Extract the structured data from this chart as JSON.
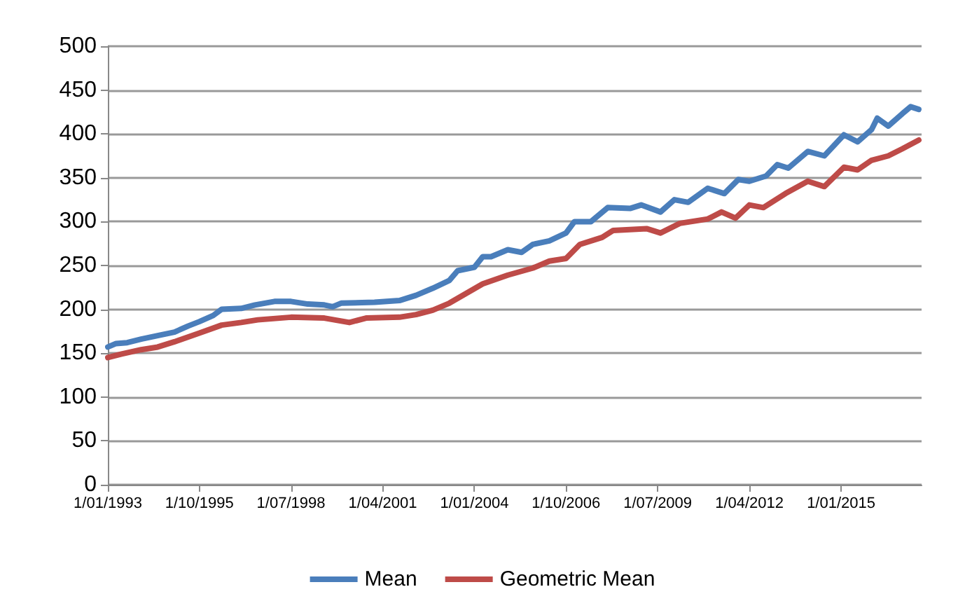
{
  "chart_data": {
    "type": "line",
    "grid": "y",
    "legend": "bottom",
    "marker": "none",
    "line_style": "solid",
    "xlim": [
      "1993-01",
      "2017-06"
    ],
    "xticks": [
      {
        "value": "1993-01",
        "label": "1/01/1993"
      },
      {
        "value": "1995-10",
        "label": "1/10/1995"
      },
      {
        "value": "1998-07",
        "label": "1/07/1998"
      },
      {
        "value": "2001-04",
        "label": "1/04/2001"
      },
      {
        "value": "2004-01",
        "label": "1/01/2004"
      },
      {
        "value": "2006-10",
        "label": "1/10/2006"
      },
      {
        "value": "2009-07",
        "label": "1/07/2009"
      },
      {
        "value": "2012-04",
        "label": "1/04/2012"
      },
      {
        "value": "2015-01",
        "label": "1/01/2015"
      }
    ],
    "ylim": [
      0,
      500
    ],
    "yticks": [
      0,
      50,
      100,
      150,
      200,
      250,
      300,
      350,
      400,
      450,
      500
    ],
    "series": [
      {
        "name": "Mean",
        "color": "#4a7ebb",
        "x": [
          "1993-01",
          "1993-04",
          "1993-08",
          "1994-01",
          "1994-07",
          "1995-01",
          "1995-06",
          "1995-10",
          "1996-03",
          "1996-06",
          "1997-01",
          "1997-06",
          "1998-01",
          "1998-07",
          "1999-01",
          "1999-07",
          "1999-10",
          "2000-01",
          "2001-01",
          "2001-10",
          "2002-04",
          "2002-10",
          "2003-04",
          "2003-07",
          "2004-01",
          "2004-04",
          "2004-07",
          "2005-01",
          "2005-06",
          "2005-10",
          "2006-04",
          "2006-10",
          "2007-01",
          "2007-07",
          "2008-01",
          "2008-09",
          "2009-01",
          "2009-08",
          "2010-01",
          "2010-06",
          "2011-01",
          "2011-07",
          "2011-12",
          "2012-04",
          "2012-10",
          "2013-02",
          "2013-06",
          "2014-01",
          "2014-07",
          "2015-02",
          "2015-07",
          "2015-12",
          "2016-02",
          "2016-06",
          "2016-11",
          "2017-02",
          "2017-05"
        ],
        "values": [
          157,
          161,
          162,
          166,
          170,
          174,
          181,
          186,
          193,
          200,
          201,
          205,
          209,
          209,
          206,
          205,
          203,
          207,
          208,
          210,
          216,
          224,
          233,
          244,
          248,
          260,
          260,
          268,
          265,
          274,
          278,
          287,
          300,
          300,
          316,
          315,
          319,
          311,
          325,
          322,
          338,
          332,
          348,
          346,
          352,
          365,
          361,
          380,
          375,
          399,
          391,
          405,
          418,
          409,
          423,
          431,
          428
        ]
      },
      {
        "name": "Geometric Mean",
        "color": "#be4b48",
        "x": [
          "1993-01",
          "1993-06",
          "1994-01",
          "1994-07",
          "1995-01",
          "1995-10",
          "1996-06",
          "1997-01",
          "1997-07",
          "1998-07",
          "1999-07",
          "2000-04",
          "2000-10",
          "2001-10",
          "2002-04",
          "2002-10",
          "2003-04",
          "2003-10",
          "2004-04",
          "2005-01",
          "2005-10",
          "2006-04",
          "2006-10",
          "2007-03",
          "2007-11",
          "2008-03",
          "2009-03",
          "2009-08",
          "2010-03",
          "2011-01",
          "2011-06",
          "2011-11",
          "2012-04",
          "2012-09",
          "2013-05",
          "2014-01",
          "2014-07",
          "2015-02",
          "2015-07",
          "2015-12",
          "2016-06",
          "2016-11",
          "2017-05"
        ],
        "values": [
          145,
          149,
          154,
          157,
          163,
          173,
          182,
          185,
          188,
          191,
          190,
          185,
          190,
          191,
          194,
          199,
          207,
          218,
          229,
          239,
          247,
          255,
          258,
          274,
          282,
          290,
          292,
          287,
          298,
          303,
          311,
          304,
          319,
          316,
          332,
          346,
          340,
          362,
          359,
          370,
          375,
          383,
          393
        ]
      }
    ]
  }
}
